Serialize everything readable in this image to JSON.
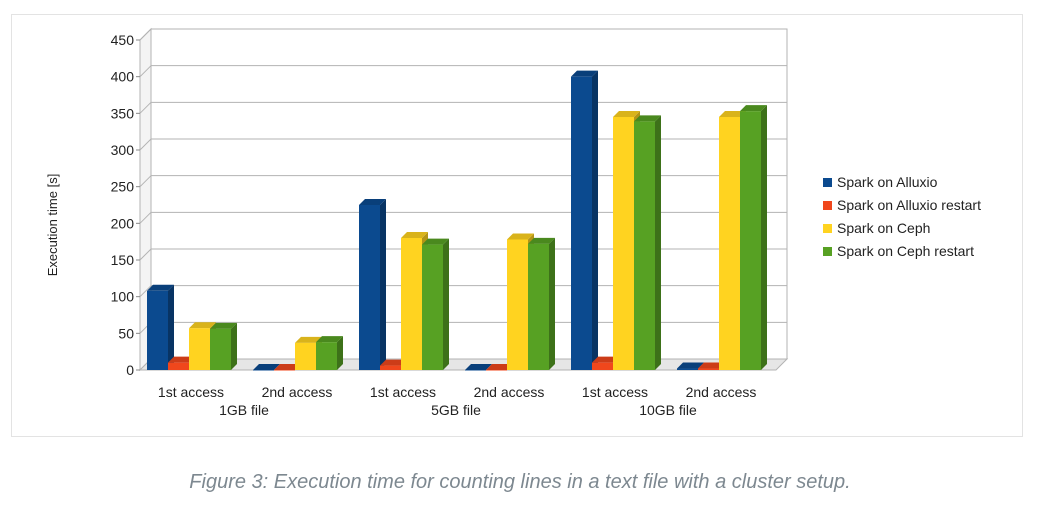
{
  "chart_data": {
    "type": "bar",
    "title": "",
    "xlabel": "",
    "ylabel": "Execution time [s]",
    "ylim": [
      0,
      450
    ],
    "yticks": [
      0,
      50,
      100,
      150,
      200,
      250,
      300,
      350,
      400,
      450
    ],
    "grid": true,
    "legend_position": "right",
    "categories": [
      "1st access",
      "2nd access",
      "1st access",
      "2nd access",
      "1st access",
      "2nd access"
    ],
    "groups": [
      {
        "label": "1GB file",
        "span": [
          0,
          1
        ]
      },
      {
        "label": "5GB file",
        "span": [
          2,
          3
        ]
      },
      {
        "label": "10GB file",
        "span": [
          4,
          5
        ]
      }
    ],
    "series": [
      {
        "name": "Spark on Alluxio",
        "color": "#0b4a8f",
        "values": [
          108,
          0,
          225,
          0,
          400,
          2
        ]
      },
      {
        "name": "Spark on Alluxio restart",
        "color": "#f0471c",
        "values": [
          10,
          0,
          6,
          0,
          10,
          2
        ]
      },
      {
        "name": "Spark on Ceph",
        "color": "#ffd320",
        "values": [
          57,
          37,
          180,
          178,
          345,
          345
        ]
      },
      {
        "name": "Spark on Ceph restart",
        "color": "#57a123",
        "values": [
          56,
          38,
          171,
          172,
          339,
          353
        ]
      }
    ]
  },
  "caption": "Figure 3: Execution time for counting lines in a text file with a cluster setup."
}
